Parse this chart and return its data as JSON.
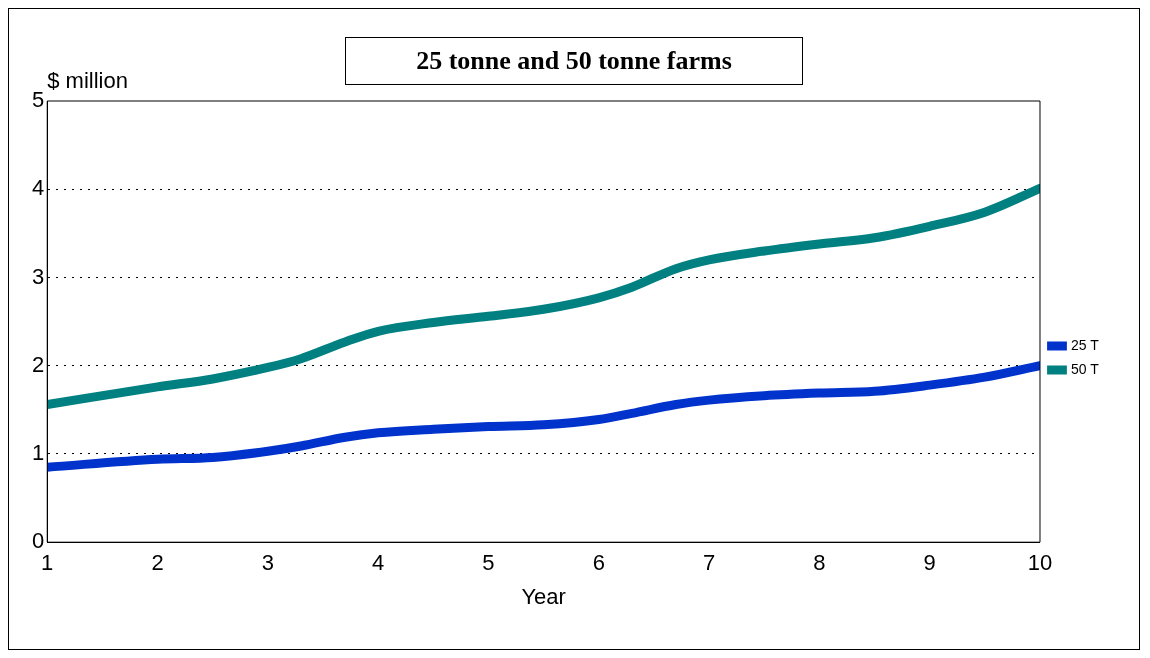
{
  "chart_data": {
    "type": "line",
    "title": "25 tonne and 50 tonne farms",
    "ylabel": "$ million",
    "xlabel": "Year",
    "xlim": [
      1,
      10
    ],
    "xticks": [
      1,
      2,
      3,
      4,
      5,
      6,
      7,
      8,
      9,
      10
    ],
    "ylim": [
      0,
      5
    ],
    "yticks": [
      0,
      1,
      2,
      3,
      4,
      5
    ],
    "grid": "y",
    "legend": "right",
    "marker": "none",
    "line_style": "solid",
    "series": [
      {
        "name": "25 T",
        "color": "#0033cc",
        "x": [
          1,
          2,
          2.5,
          3,
          3.3,
          3.7,
          4,
          4.5,
          5,
          5.5,
          6,
          6.3,
          6.7,
          7,
          7.5,
          8,
          8.5,
          9,
          9.5,
          10
        ],
        "values": [
          0.85,
          0.94,
          0.96,
          1.03,
          1.09,
          1.19,
          1.24,
          1.28,
          1.31,
          1.33,
          1.39,
          1.46,
          1.56,
          1.61,
          1.66,
          1.69,
          1.71,
          1.78,
          1.87,
          2.0
        ]
      },
      {
        "name": "50 T",
        "color": "#008080",
        "x": [
          1,
          2,
          2.5,
          3,
          3.3,
          3.7,
          4,
          4.5,
          5,
          5.5,
          6,
          6.3,
          6.7,
          7,
          7.5,
          8,
          8.5,
          9,
          9.5,
          10
        ],
        "values": [
          1.56,
          1.76,
          1.85,
          1.98,
          2.08,
          2.27,
          2.39,
          2.49,
          2.56,
          2.64,
          2.77,
          2.89,
          3.1,
          3.2,
          3.3,
          3.38,
          3.45,
          3.58,
          3.74,
          4.01
        ]
      }
    ]
  }
}
